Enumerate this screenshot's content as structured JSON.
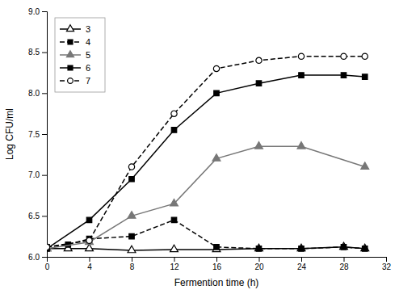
{
  "chart_data": {
    "type": "line",
    "xlabel": "Fermention time (h)",
    "ylabel": "Log CFU/ml",
    "xlim": [
      0,
      32
    ],
    "ylim": [
      6.0,
      9.0
    ],
    "xticks": [
      0,
      4,
      8,
      12,
      16,
      20,
      24,
      28,
      32
    ],
    "yticks": [
      {
        "value": 6.0,
        "label": "6.0"
      },
      6.5,
      {
        "value": 7.0,
        "label": "7.0"
      },
      7.5,
      {
        "value": 8.0,
        "label": "8.0"
      },
      8.5,
      {
        "value": 9.0,
        "label": "9.0"
      }
    ],
    "grid": false,
    "legend": "upper left",
    "series": [
      {
        "name": "3",
        "color": "#000000",
        "line_style": "solid",
        "marker": "triangle-open",
        "x": [
          0,
          2,
          4,
          8,
          12,
          16,
          20,
          24,
          28,
          30
        ],
        "values": [
          6.1,
          6.1,
          6.1,
          6.08,
          6.09,
          6.09,
          6.1,
          6.1,
          6.12,
          6.1
        ]
      },
      {
        "name": "4",
        "color": "#000000",
        "line_style": "dashed",
        "marker": "square",
        "x": [
          0,
          2,
          4,
          8,
          12,
          16,
          20,
          24,
          28,
          30
        ],
        "values": [
          6.12,
          6.15,
          6.22,
          6.25,
          6.45,
          6.12,
          6.1,
          6.1,
          6.12,
          6.1
        ]
      },
      {
        "name": "5",
        "color": "#777777",
        "line_style": "solid",
        "marker": "triangle",
        "x": [
          0,
          4,
          8,
          12,
          16,
          20,
          24,
          30
        ],
        "values": [
          6.1,
          6.18,
          6.5,
          6.65,
          7.2,
          7.35,
          7.35,
          7.1
        ]
      },
      {
        "name": "6",
        "color": "#000000",
        "line_style": "solid",
        "marker": "square",
        "x": [
          0,
          4,
          8,
          12,
          16,
          20,
          24,
          28,
          30
        ],
        "values": [
          6.1,
          6.45,
          6.95,
          7.55,
          8.0,
          8.12,
          8.22,
          8.22,
          8.2
        ]
      },
      {
        "name": "7",
        "color": "#000000",
        "line_style": "dashed",
        "marker": "circle-open",
        "x": [
          0,
          4,
          8,
          12,
          16,
          20,
          24,
          28,
          30
        ],
        "values": [
          6.12,
          6.2,
          7.1,
          7.75,
          8.3,
          8.4,
          8.45,
          8.45,
          8.45
        ]
      }
    ]
  }
}
